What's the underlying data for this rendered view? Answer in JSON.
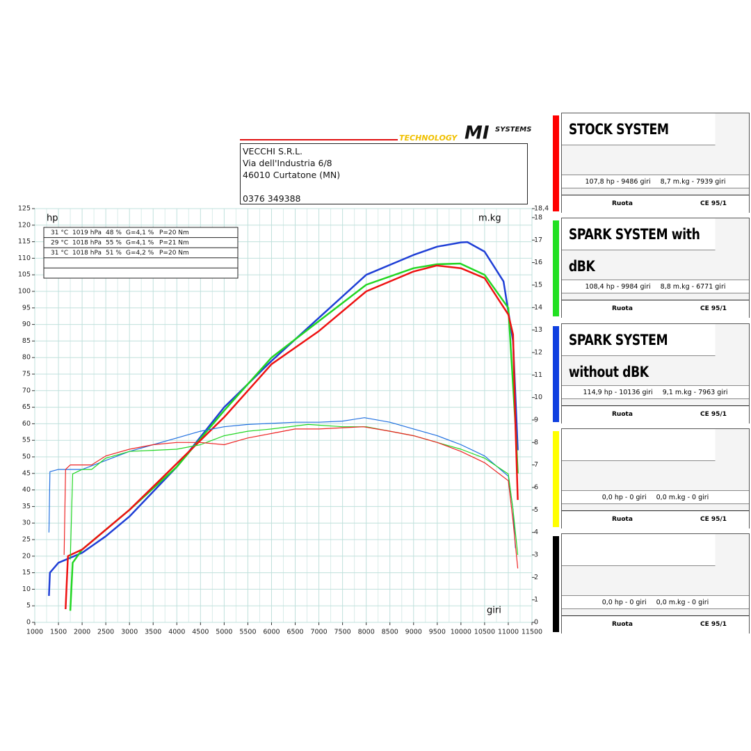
{
  "header": {
    "logo_left": "TECHNOLOGY",
    "logo_mid": "MI",
    "logo_right": "SYSTEMS",
    "address": [
      "VECCHI S.R.L.",
      "Via dell'Industria 6/8",
      "46010 Curtatone (MN)",
      "0376 349388"
    ]
  },
  "conditions": [
    [
      "31 °C",
      "1019 hPa",
      "48 %",
      "G=4,1 %",
      "P=20 Nm"
    ],
    [
      "29 °C",
      "1018 hPa",
      "55 %",
      "G=4,1 %",
      "P=21 Nm"
    ],
    [
      "31 °C",
      "1018 hPa",
      "51 %",
      "G=4,2 %",
      "P=20 Nm"
    ]
  ],
  "chart_data": {
    "type": "line",
    "xlabel": "giri",
    "ylabel": "hp",
    "y2label": "m.kg",
    "grid": true,
    "xlim": [
      1000,
      11500
    ],
    "xticks": [
      1000,
      1500,
      2000,
      2500,
      3000,
      3500,
      4000,
      4500,
      5000,
      5500,
      6000,
      6500,
      7000,
      7500,
      8000,
      8500,
      9000,
      9500,
      10000,
      10500,
      11000,
      11500
    ],
    "ylim": [
      0,
      125
    ],
    "yticks": [
      0,
      5,
      10,
      15,
      20,
      25,
      30,
      35,
      40,
      45,
      50,
      55,
      60,
      65,
      70,
      75,
      80,
      85,
      90,
      95,
      100,
      105,
      110,
      115,
      120,
      125
    ],
    "y2lim": [
      0,
      18.4
    ],
    "y2ticks": [
      0,
      1,
      2,
      3,
      4,
      5,
      6,
      7,
      8,
      9,
      10,
      11,
      12,
      13,
      14,
      15,
      16,
      17,
      18,
      {
        "value": 18.4,
        "label": "18,4"
      }
    ],
    "series": [
      {
        "color": "#1f3fd6",
        "width": 2.5,
        "x": [
          1300,
          1320,
          1500,
          2000,
          2500,
          3000,
          4000,
          5000,
          6000,
          7000,
          8000,
          9000,
          9500,
          10000,
          10136,
          10500,
          10900,
          11100,
          11200
        ],
        "values": [
          8,
          15,
          18,
          21,
          26,
          32,
          47,
          65,
          79,
          92,
          105,
          111,
          113.5,
          114.8,
          114.9,
          112,
          103,
          85,
          52
        ]
      },
      {
        "color": "#22d622",
        "width": 2.5,
        "x": [
          1750,
          1800,
          2000,
          3000,
          4000,
          5000,
          6000,
          7000,
          8000,
          9000,
          9500,
          9984,
          10500,
          11000,
          11150,
          11200
        ],
        "values": [
          3.5,
          18,
          22,
          34,
          47,
          64,
          80,
          91,
          102,
          107,
          108.2,
          108.4,
          105,
          95,
          60,
          45
        ]
      },
      {
        "color": "#ee1111",
        "width": 2.5,
        "x": [
          1650,
          1700,
          2000,
          3000,
          4000,
          5000,
          6000,
          7000,
          8000,
          9000,
          9486,
          10000,
          10500,
          11000,
          11100,
          11150,
          11200
        ],
        "values": [
          4,
          20,
          22,
          34,
          48,
          62,
          78,
          88,
          100,
          106,
          107.8,
          107,
          104,
          93,
          87,
          60,
          37
        ]
      },
      {
        "color": "#1f6fe0",
        "width": 1.2,
        "axis": "y2",
        "x": [
          1300,
          1320,
          1500,
          2000,
          2500,
          3000,
          3500,
          4000,
          4500,
          5000,
          5500,
          6000,
          6500,
          7000,
          7500,
          7963,
          8500,
          9000,
          9500,
          10000,
          10500,
          11000,
          11100,
          11150
        ],
        "values": [
          4,
          6.7,
          6.8,
          6.8,
          7.2,
          7.6,
          7.9,
          8.2,
          8.5,
          8.7,
          8.8,
          8.85,
          8.9,
          8.9,
          8.95,
          9.1,
          8.9,
          8.6,
          8.3,
          7.9,
          7.4,
          6.5,
          5,
          3.3
        ]
      },
      {
        "color": "#22d622",
        "width": 1.2,
        "axis": "y2",
        "x": [
          1750,
          1800,
          2000,
          2200,
          2500,
          3000,
          3500,
          4000,
          4500,
          5000,
          5500,
          6000,
          6771,
          7500,
          8000,
          8500,
          9000,
          9500,
          10000,
          10500,
          11000,
          11100,
          11200
        ],
        "values": [
          2.8,
          6.6,
          6.8,
          6.8,
          7.3,
          7.6,
          7.65,
          7.7,
          7.9,
          8.3,
          8.5,
          8.6,
          8.8,
          8.7,
          8.7,
          8.5,
          8.3,
          8,
          7.7,
          7.3,
          6.6,
          5,
          3
        ]
      },
      {
        "color": "#ee2222",
        "width": 1.2,
        "axis": "y2",
        "x": [
          1620,
          1650,
          1750,
          2000,
          2200,
          2500,
          3000,
          3500,
          4000,
          4500,
          5000,
          5500,
          6000,
          6500,
          7000,
          7939,
          8500,
          9000,
          9500,
          10000,
          10500,
          11000,
          11100,
          11200
        ],
        "values": [
          3,
          6.8,
          7,
          7,
          7,
          7.4,
          7.7,
          7.9,
          8,
          8,
          7.9,
          8.2,
          8.4,
          8.6,
          8.6,
          8.7,
          8.5,
          8.3,
          8,
          7.6,
          7.1,
          6.3,
          4.5,
          2.4
        ]
      }
    ]
  },
  "panels": [
    {
      "title": "STOCK SYSTEM",
      "color": "#ff0000",
      "hp": "107,8 hp - 9486 giri",
      "torque": "8,7 m.kg - 7939 giri",
      "left": "Ruota",
      "right": "CE 95/1"
    },
    {
      "title": "SPARK SYSTEM with dBK",
      "color": "#22e022",
      "hp": "108,4 hp - 9984 giri",
      "torque": "8,8 m.kg - 6771 giri",
      "left": "Ruota",
      "right": "CE 95/1"
    },
    {
      "title": "SPARK SYSTEM without dBK",
      "color": "#1040e0",
      "hp": "114,9 hp - 10136 giri",
      "torque": "9,1 m.kg - 7963 giri",
      "left": "Ruota",
      "right": "CE 95/1"
    },
    {
      "color": "#ffff00",
      "hp": "0,0 hp - 0 giri",
      "torque": "0,0 m.kg - 0 giri",
      "left": "Ruota",
      "right": "CE 95/1"
    },
    {
      "color": "#000000",
      "hp": "0,0 hp - 0 giri",
      "torque": "0,0 m.kg - 0 giri",
      "left": "Ruota",
      "right": "CE 95/1"
    }
  ]
}
